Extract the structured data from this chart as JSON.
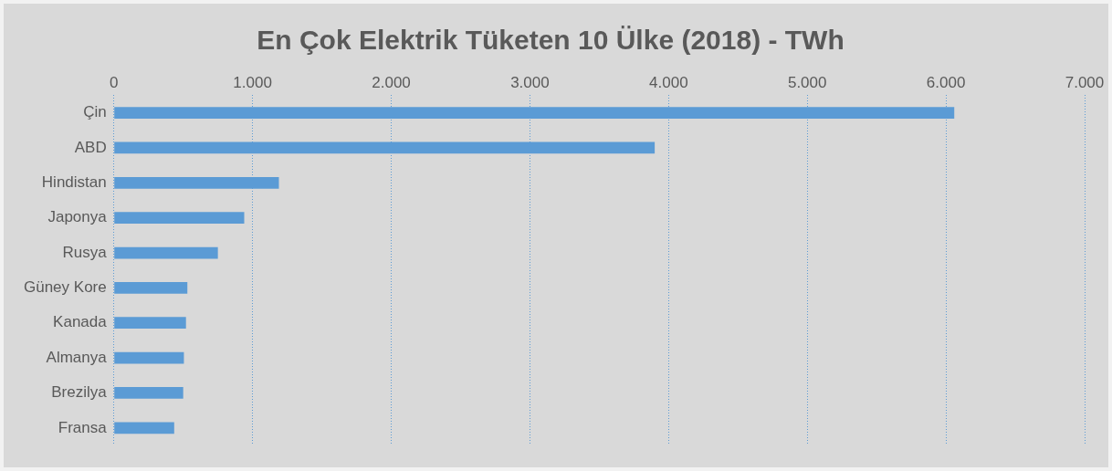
{
  "chart_data": {
    "type": "bar",
    "orientation": "horizontal",
    "title": "En Çok Elektrik Tüketen 10 Ülke (2018) - TWh",
    "categories": [
      "Çin",
      "ABD",
      "Hindistan",
      "Japonya",
      "Rusya",
      "Güney Kore",
      "Kanada",
      "Almanya",
      "Brezilya",
      "Fransa"
    ],
    "values": [
      6060,
      3900,
      1190,
      940,
      750,
      530,
      520,
      505,
      500,
      435
    ],
    "color": "#5b9bd5",
    "xlim": [
      0,
      7000
    ],
    "xticks": [
      {
        "value": 0,
        "label": "0"
      },
      {
        "value": 1000,
        "label": "1.000"
      },
      {
        "value": 2000,
        "label": "2.000"
      },
      {
        "value": 3000,
        "label": "3.000"
      },
      {
        "value": 4000,
        "label": "4.000"
      },
      {
        "value": 5000,
        "label": "5.000"
      },
      {
        "value": 6000,
        "label": "6.000"
      },
      {
        "value": 7000,
        "label": "7.000"
      }
    ],
    "grid": "x"
  }
}
